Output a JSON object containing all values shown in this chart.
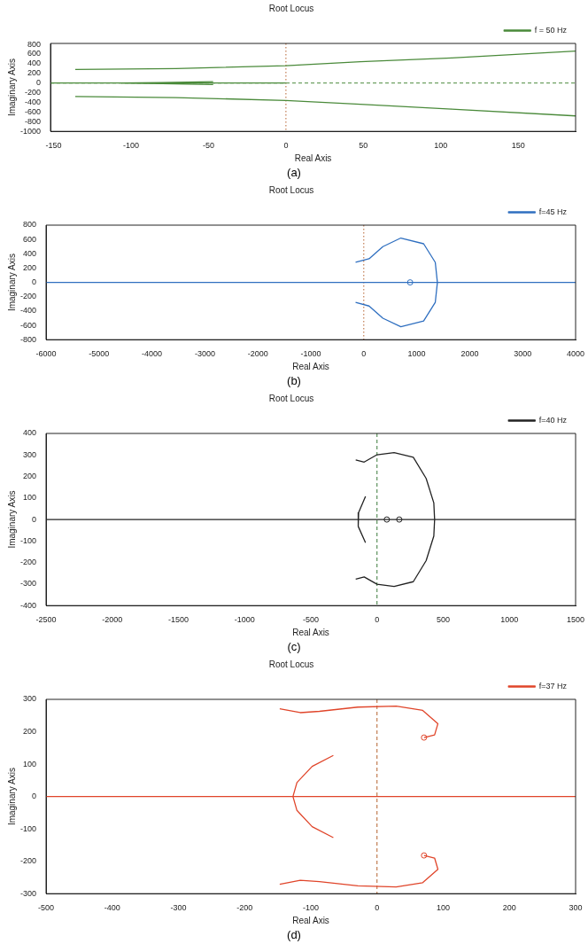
{
  "chart_data": [
    {
      "type": "line",
      "title": "Root Locus",
      "xlabel": "Real Axis",
      "ylabel": "Imaginary Axis",
      "xlim": [
        -152,
        187
      ],
      "ylim": [
        -1000,
        820
      ],
      "xticks": [
        -150,
        -100,
        -50,
        0,
        50,
        100,
        150
      ],
      "yticks": [
        -1000,
        -800,
        -600,
        -400,
        -200,
        0,
        200,
        400,
        600,
        800
      ],
      "legend": "top right",
      "annotations": [
        "(a)"
      ],
      "ref_lines": [
        {
          "axis": "x",
          "value": 0,
          "color": "#b5622e",
          "line_style": "dotted"
        },
        {
          "axis": "y",
          "value": 0,
          "color": "#4a8a3a",
          "line_style": "dashed"
        }
      ],
      "series": [
        {
          "name": "f = 50 Hz",
          "color": "#4a8a3a",
          "x": [
            -136,
            -71,
            0,
            48,
            107,
            187
          ],
          "values": [
            280,
            300,
            360,
            440,
            520,
            660
          ]
        },
        {
          "color": "#4a8a3a",
          "x": [
            -136,
            -71,
            0,
            48,
            107,
            187
          ],
          "values": [
            -280,
            -300,
            -360,
            -440,
            -540,
            -680
          ]
        },
        {
          "color": "#4a8a3a",
          "x": [
            -152,
            0
          ],
          "values": [
            0,
            0
          ]
        },
        {
          "color": "#4a8a3a",
          "x": [
            -47,
            -80,
            -106,
            -80,
            -47
          ],
          "values": [
            30,
            10,
            0,
            -10,
            -30
          ]
        }
      ]
    },
    {
      "type": "line",
      "title": "Root Locus",
      "xlabel": "Real Axis",
      "ylabel": "Imaginary Axis",
      "xlim": [
        -6000,
        4000
      ],
      "ylim": [
        -800,
        800
      ],
      "xticks": [
        -6000,
        -5000,
        -4000,
        -3000,
        -2000,
        -1000,
        0,
        1000,
        2000,
        3000,
        4000
      ],
      "yticks": [
        -800,
        -600,
        -400,
        -200,
        0,
        200,
        400,
        600,
        800
      ],
      "legend": "top right",
      "annotations": [
        "(b)"
      ],
      "ref_lines": [
        {
          "axis": "x",
          "value": 0,
          "color": "#b5622e",
          "line_style": "dotted"
        }
      ],
      "series": [
        {
          "name": "f=45 Hz",
          "color": "#2f6fc0",
          "x": [
            -155,
            100,
            360,
            700,
            1130,
            1350,
            1390,
            1350,
            1130,
            700,
            360,
            100,
            -155
          ],
          "values": [
            280,
            330,
            500,
            620,
            540,
            280,
            0,
            -280,
            -540,
            -620,
            -500,
            -330,
            -280
          ]
        },
        {
          "color": "#2f6fc0",
          "x": [
            -6000,
            4000
          ],
          "values": [
            0,
            0
          ]
        },
        {
          "type": "scatter",
          "marker": "circle",
          "color": "#2f6fc0",
          "x": [
            875
          ],
          "values": [
            0
          ]
        }
      ]
    },
    {
      "type": "line",
      "title": "Root Locus",
      "xlabel": "Real Axis",
      "ylabel": "Imaginary Axis",
      "xlim": [
        -2500,
        1500
      ],
      "ylim": [
        -400,
        400
      ],
      "xticks": [
        -2500,
        -2000,
        -1500,
        -1000,
        -500,
        0,
        500,
        1000,
        1500
      ],
      "yticks": [
        -400,
        -300,
        -200,
        -100,
        0,
        100,
        200,
        300,
        400
      ],
      "legend": "top right",
      "annotations": [
        "(c)"
      ],
      "ref_lines": [
        {
          "axis": "x",
          "value": 0,
          "color": "#3a7a3a",
          "line_style": "dashed"
        }
      ],
      "series": [
        {
          "name": "f=40 Hz",
          "color": "#222222",
          "x": [
            -161,
            -97,
            0,
            129,
            274,
            371,
            429,
            435,
            429,
            371,
            274,
            129,
            0,
            -97,
            -161
          ],
          "values": [
            277,
            267,
            301,
            311,
            289,
            191,
            77,
            0,
            -77,
            -191,
            -289,
            -311,
            -301,
            -267,
            -277
          ]
        },
        {
          "color": "#222222",
          "x": [
            -2500,
            1500
          ],
          "values": [
            0,
            0
          ]
        },
        {
          "color": "#222222",
          "x": [
            -87,
            -139,
            -145,
            -139,
            -87
          ],
          "values": [
            108,
            32,
            0,
            -32,
            -108
          ]
        },
        {
          "type": "scatter",
          "marker": "circle",
          "color": "#222222",
          "x": [
            74,
            168
          ],
          "values": [
            0,
            0
          ]
        }
      ]
    },
    {
      "type": "line",
      "title": "Root Locus",
      "xlabel": "Real Axis",
      "ylabel": "Imaginary Axis",
      "xlim": [
        -500,
        300
      ],
      "ylim": [
        -300,
        300
      ],
      "xticks": [
        -500,
        -400,
        -300,
        -200,
        -100,
        0,
        100,
        200,
        300
      ],
      "yticks": [
        -300,
        -200,
        -100,
        0,
        100,
        200,
        300
      ],
      "legend": "top right",
      "annotations": [
        "(d)"
      ],
      "ref_lines": [
        {
          "axis": "x",
          "value": 0,
          "color": "#b5622e",
          "line_style": "dashed"
        }
      ],
      "series": [
        {
          "name": "f=37 Hz",
          "color": "#e0452a",
          "x": [
            -147,
            -116,
            -87,
            -29,
            29,
            69,
            92,
            87,
            71
          ],
          "values": [
            271,
            259,
            263,
            276,
            279,
            266,
            225,
            190,
            182
          ]
        },
        {
          "color": "#e0452a",
          "x": [
            -147,
            -116,
            -87,
            -29,
            29,
            69,
            92,
            87,
            71
          ],
          "values": [
            -271,
            -259,
            -263,
            -276,
            -279,
            -266,
            -225,
            -190,
            -182
          ]
        },
        {
          "color": "#e0452a",
          "x": [
            -500,
            300
          ],
          "values": [
            0,
            0
          ]
        },
        {
          "color": "#e0452a",
          "x": [
            -66,
            -98,
            -121,
            -127,
            -121,
            -98,
            -66
          ],
          "values": [
            127,
            93,
            43,
            0,
            -43,
            -93,
            -127
          ]
        },
        {
          "type": "scatter",
          "marker": "circle",
          "color": "#e0452a",
          "x": [
            71,
            71
          ],
          "values": [
            182,
            -182
          ]
        }
      ]
    }
  ]
}
